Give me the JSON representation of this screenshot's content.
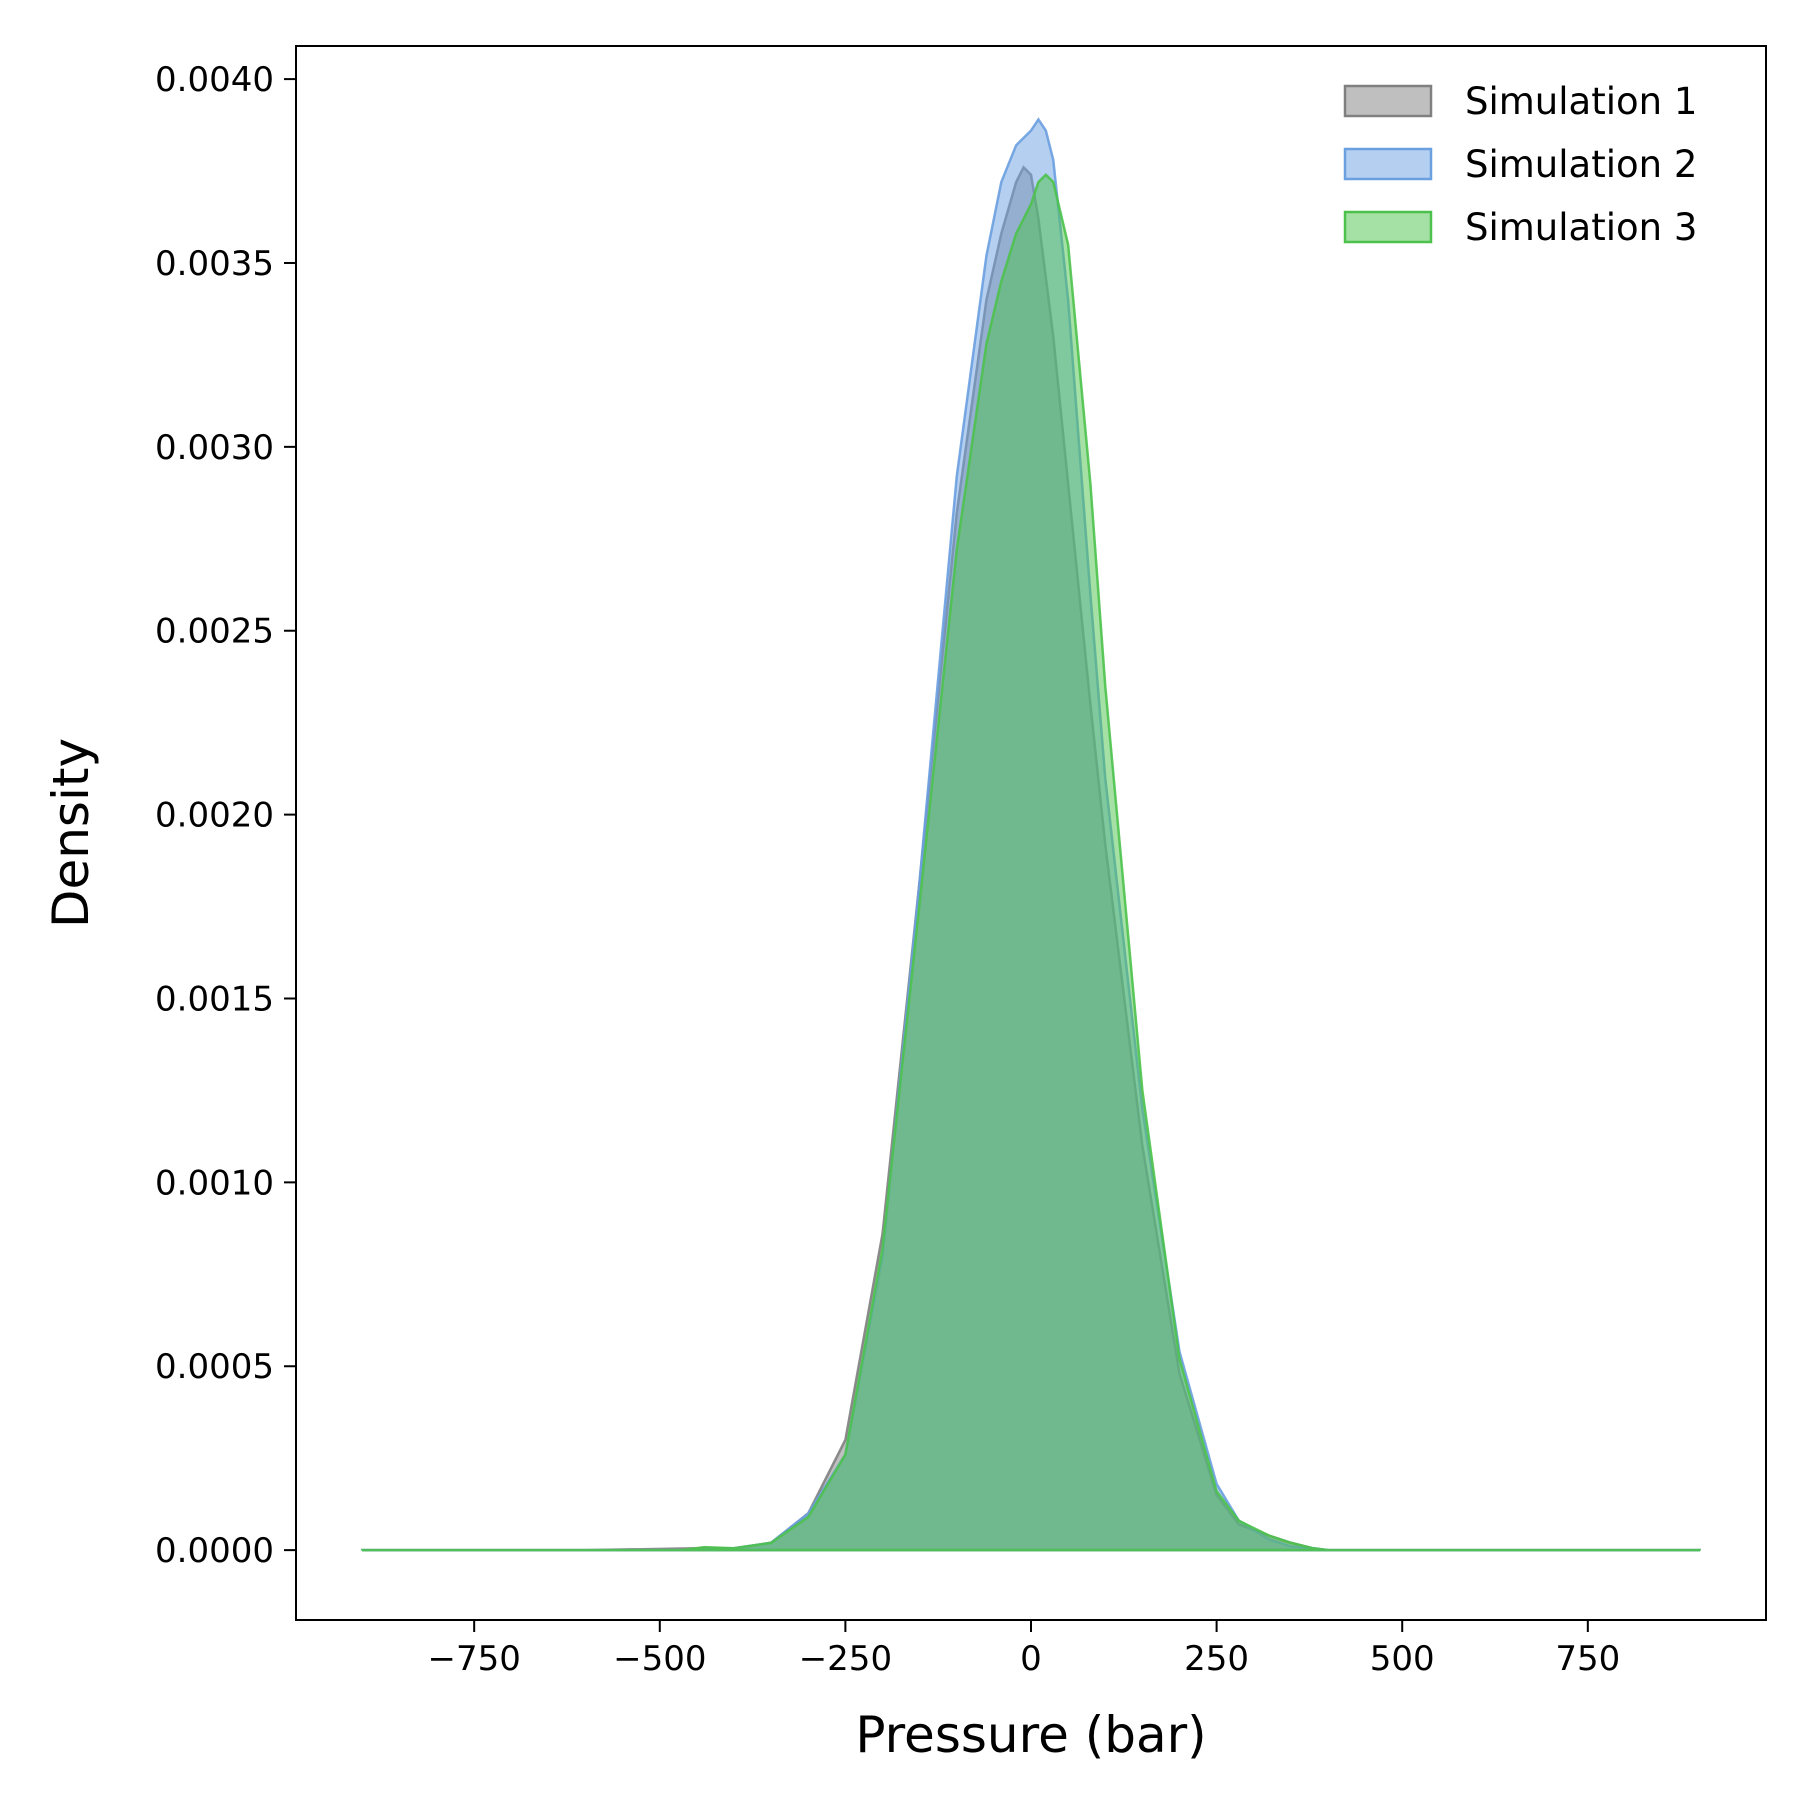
{
  "chart_data": {
    "type": "area",
    "title": "",
    "xlabel": "Pressure (bar)",
    "ylabel": "Density",
    "xlim": [
      -990,
      990
    ],
    "ylim": [
      -0.00019,
      0.00409
    ],
    "xticks": [
      -750,
      -500,
      -250,
      0,
      250,
      500,
      750
    ],
    "xtick_labels": [
      "−750",
      "−500",
      "−250",
      "0",
      "250",
      "500",
      "750"
    ],
    "yticks": [
      0,
      0.0005,
      0.001,
      0.0015,
      0.002,
      0.0025,
      0.003,
      0.0035,
      0.004
    ],
    "ytick_labels": [
      "0.0000",
      "0.0005",
      "0.0010",
      "0.0015",
      "0.0020",
      "0.0025",
      "0.0030",
      "0.0035",
      "0.0040"
    ],
    "grid": false,
    "legend_position": "top-right",
    "series": [
      {
        "name": "Simulation 1",
        "color": "#808080",
        "x": [
          -900,
          -600,
          -450,
          -400,
          -350,
          -300,
          -250,
          -200,
          -150,
          -100,
          -60,
          -40,
          -20,
          -10,
          0,
          10,
          30,
          50,
          80,
          100,
          150,
          200,
          250,
          280,
          320,
          350,
          380,
          400,
          450,
          600,
          900
        ],
        "y": [
          0,
          0,
          5e-06,
          5e-06,
          2e-05,
          0.0001,
          0.0003,
          0.00086,
          0.00182,
          0.00282,
          0.0034,
          0.00358,
          0.00372,
          0.00376,
          0.00374,
          0.00362,
          0.0033,
          0.0029,
          0.0023,
          0.00192,
          0.0011,
          0.00048,
          0.00015,
          7e-05,
          4e-05,
          2e-05,
          5e-06,
          0,
          0,
          0,
          0
        ]
      },
      {
        "name": "Simulation 2",
        "color": "#6a9fe0",
        "x": [
          -900,
          -600,
          -450,
          -400,
          -350,
          -300,
          -250,
          -200,
          -150,
          -100,
          -60,
          -40,
          -20,
          0,
          10,
          20,
          30,
          50,
          80,
          100,
          150,
          200,
          250,
          280,
          320,
          350,
          380,
          400,
          450,
          600,
          900
        ],
        "y": [
          0,
          0,
          0,
          5e-06,
          2e-05,
          0.0001,
          0.00026,
          0.0008,
          0.00182,
          0.00292,
          0.00352,
          0.00372,
          0.00382,
          0.00386,
          0.00389,
          0.00386,
          0.00378,
          0.0034,
          0.0026,
          0.0021,
          0.0012,
          0.00054,
          0.00018,
          8e-05,
          3e-05,
          1e-05,
          5e-06,
          0,
          0,
          0,
          0
        ]
      },
      {
        "name": "Simulation 3",
        "color": "#4cc24c",
        "x": [
          -900,
          -600,
          -470,
          -440,
          -400,
          -350,
          -300,
          -250,
          -200,
          -150,
          -100,
          -60,
          -40,
          -20,
          0,
          10,
          20,
          30,
          50,
          80,
          100,
          150,
          200,
          250,
          280,
          320,
          350,
          380,
          400,
          450,
          600,
          900
        ],
        "y": [
          0,
          0,
          0,
          8e-06,
          5e-06,
          2e-05,
          9e-05,
          0.00026,
          0.00082,
          0.00176,
          0.00272,
          0.00328,
          0.00345,
          0.00358,
          0.00366,
          0.00372,
          0.00374,
          0.00372,
          0.00355,
          0.0029,
          0.00235,
          0.00125,
          0.00052,
          0.00016,
          8e-05,
          4e-05,
          2e-05,
          5e-06,
          0,
          0,
          0,
          0
        ]
      }
    ]
  }
}
